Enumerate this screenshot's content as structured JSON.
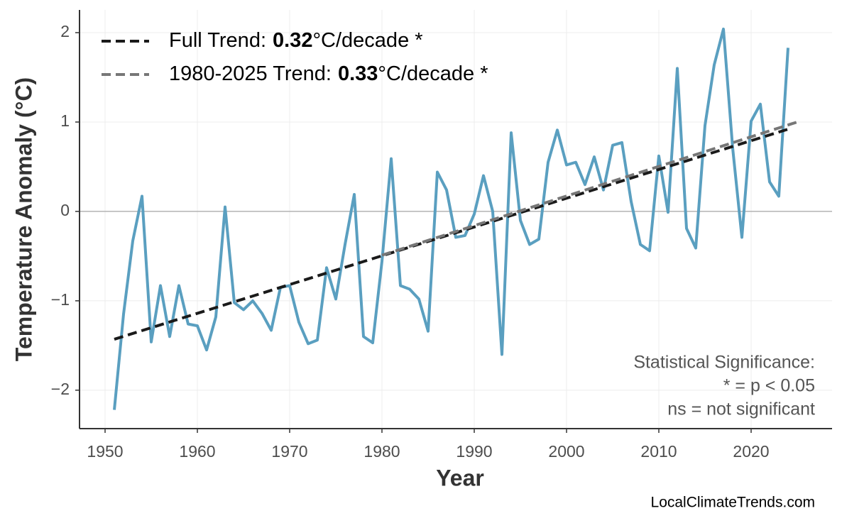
{
  "chart_data": {
    "type": "line",
    "x_label": "Year",
    "y_label": "Temperature Anomaly (°C)",
    "x": [
      1951,
      1952,
      1953,
      1954,
      1955,
      1956,
      1957,
      1958,
      1959,
      1960,
      1961,
      1962,
      1963,
      1964,
      1965,
      1966,
      1967,
      1968,
      1969,
      1970,
      1971,
      1972,
      1973,
      1974,
      1975,
      1976,
      1977,
      1978,
      1979,
      1980,
      1981,
      1982,
      1983,
      1984,
      1985,
      1986,
      1987,
      1988,
      1989,
      1990,
      1991,
      1992,
      1993,
      1994,
      1995,
      1996,
      1997,
      1998,
      1999,
      2000,
      2001,
      2002,
      2003,
      2004,
      2005,
      2006,
      2007,
      2008,
      2009,
      2010,
      2011,
      2012,
      2013,
      2014,
      2015,
      2016,
      2017,
      2018,
      2019,
      2020,
      2021,
      2022,
      2023,
      2024
    ],
    "series": [
      {
        "color": "#5a9fc0",
        "values": [
          -2.22,
          -1.15,
          -0.33,
          0.17,
          -1.46,
          -0.83,
          -1.4,
          -0.83,
          -1.26,
          -1.28,
          -1.55,
          -1.18,
          0.05,
          -1.02,
          -1.1,
          -1.0,
          -1.14,
          -1.33,
          -0.85,
          -0.83,
          -1.24,
          -1.48,
          -1.44,
          -0.63,
          -0.98,
          -0.37,
          0.19,
          -1.4,
          -1.47,
          -0.56,
          0.59,
          -0.83,
          -0.87,
          -0.98,
          -1.34,
          0.44,
          0.24,
          -0.29,
          -0.27,
          -0.03,
          0.4,
          0.0,
          -1.6,
          0.88,
          -0.1,
          -0.37,
          -0.31,
          0.55,
          0.91,
          0.52,
          0.55,
          0.3,
          0.61,
          0.24,
          0.74,
          0.77,
          0.11,
          -0.37,
          -0.44,
          0.62,
          -0.01,
          1.6,
          -0.19,
          -0.41,
          0.96,
          1.64,
          2.04,
          0.71,
          -0.29,
          1.01,
          1.2,
          0.33,
          0.17,
          1.83
        ]
      }
    ],
    "trends": [
      {
        "label_prefix": "Full Trend:",
        "slope": 0.32,
        "label_suffix": "°C/decade *",
        "color": "#1a1a1a",
        "x": [
          1951,
          2024
        ],
        "values": [
          -1.43,
          0.92
        ]
      },
      {
        "label_prefix": "1980-2025 Trend:",
        "slope": 0.33,
        "label_suffix": "°C/decade *",
        "color": "#777777",
        "x": [
          1980,
          2025
        ],
        "values": [
          -0.49,
          1.0
        ]
      }
    ],
    "xlim": [
      1947.23,
      2028.77
    ],
    "ylim": [
      -2.43,
      2.254
    ],
    "xticks": [
      1950,
      1960,
      1970,
      1980,
      1990,
      2000,
      2010,
      2020
    ],
    "yticks": [
      {
        "value": -2,
        "label": "−2"
      },
      {
        "value": -1,
        "label": "−1"
      },
      0,
      1,
      2
    ],
    "reference_line": 0,
    "grid": true,
    "annotation": [
      "Statistical Significance:",
      "* = p < 0.05",
      "ns = not significant"
    ],
    "source": "LocalClimateTrends.com"
  }
}
